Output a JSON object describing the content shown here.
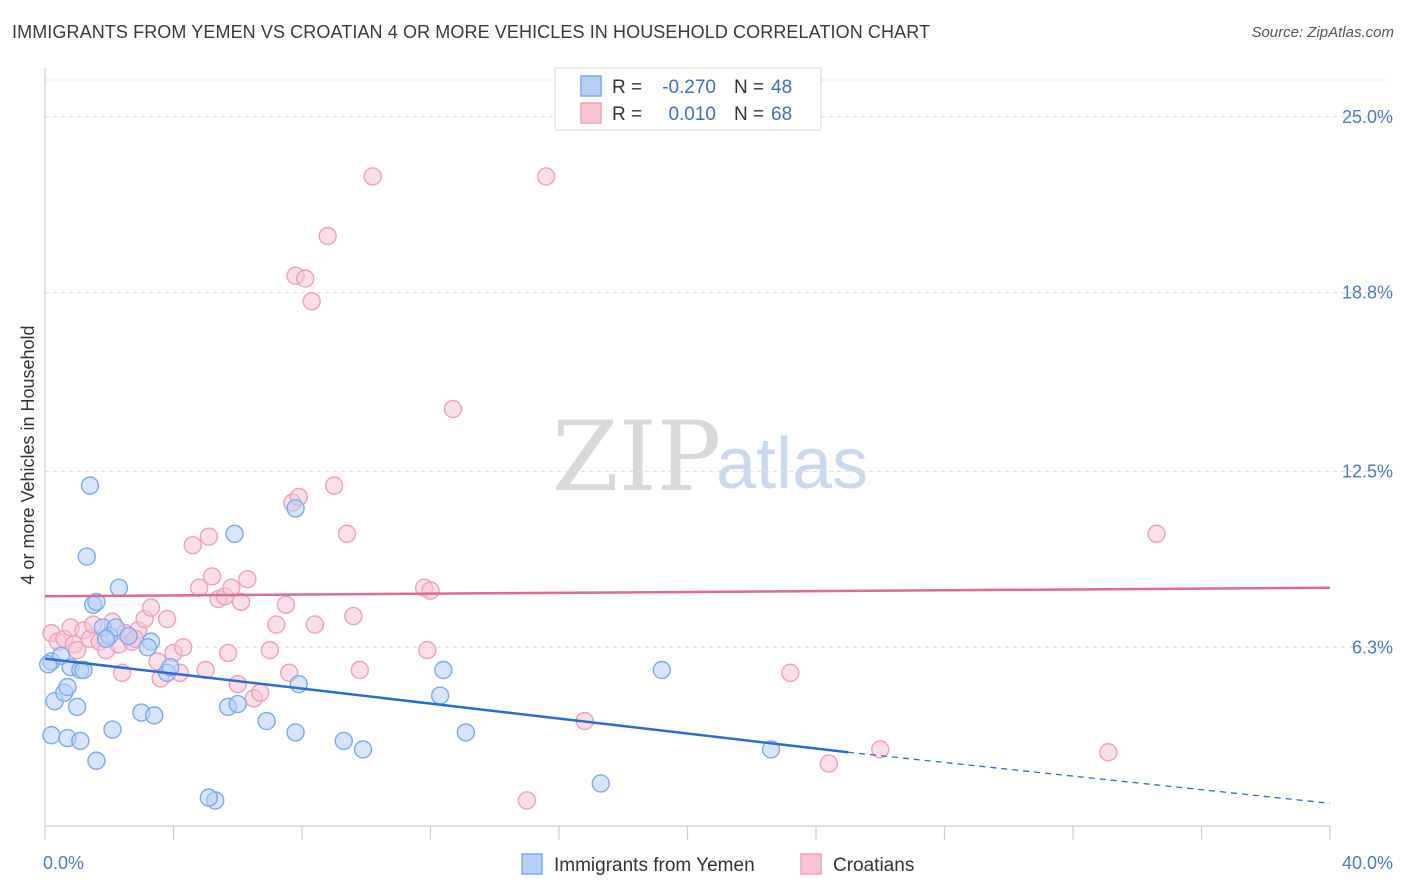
{
  "chart_data": {
    "type": "scatter",
    "title": "IMMIGRANTS FROM YEMEN VS CROATIAN 4 OR MORE VEHICLES IN HOUSEHOLD CORRELATION CHART",
    "source": "Source: ZipAtlas.com",
    "ylabel": "4 or more Vehicles in Household",
    "xlabel": "",
    "xlim": [
      0,
      40
    ],
    "ylim": [
      0,
      26.3
    ],
    "x_tick_labels": [
      "0.0%",
      "40.0%"
    ],
    "y_ticks": [
      6.3,
      12.5,
      18.8,
      25.0
    ],
    "y_tick_labels": [
      "6.3%",
      "12.5%",
      "18.8%",
      "25.0%"
    ],
    "legend": {
      "r_label": "R =",
      "n_label": "N =",
      "entries": [
        {
          "r": "-0.270",
          "n": "48"
        },
        {
          "r": "0.010",
          "n": "68"
        }
      ]
    },
    "watermark": {
      "zip": "ZIP",
      "atlas": "atlas"
    },
    "series": [
      {
        "name": "Immigrants from Yemen",
        "color": "#7aaaf0",
        "fill": "#b5cff5",
        "line_color": "#2a6dd2",
        "trend": {
          "x0": 0,
          "y0": 5.9,
          "x1": 25,
          "y1": 2.6,
          "dash_to": 40,
          "dash_y": 0.8
        },
        "points": [
          [
            0.2,
            5.8
          ],
          [
            0.5,
            6.0
          ],
          [
            0.3,
            4.4
          ],
          [
            0.6,
            4.7
          ],
          [
            0.7,
            4.9
          ],
          [
            0.8,
            5.6
          ],
          [
            1.1,
            5.5
          ],
          [
            1.0,
            4.2
          ],
          [
            0.2,
            3.2
          ],
          [
            0.7,
            3.1
          ],
          [
            1.1,
            3.0
          ],
          [
            1.6,
            2.3
          ],
          [
            1.4,
            12.0
          ],
          [
            1.3,
            9.5
          ],
          [
            1.5,
            7.8
          ],
          [
            1.6,
            7.9
          ],
          [
            1.8,
            7.0
          ],
          [
            2.0,
            6.7
          ],
          [
            2.2,
            7.0
          ],
          [
            2.3,
            8.4
          ],
          [
            1.9,
            6.6
          ],
          [
            2.6,
            6.7
          ],
          [
            3.3,
            6.5
          ],
          [
            3.2,
            6.3
          ],
          [
            3.0,
            4.0
          ],
          [
            3.4,
            3.9
          ],
          [
            3.8,
            5.4
          ],
          [
            3.9,
            5.6
          ],
          [
            2.1,
            3.4
          ],
          [
            5.3,
            0.9
          ],
          [
            5.1,
            1.0
          ],
          [
            5.7,
            4.2
          ],
          [
            6.0,
            4.3
          ],
          [
            5.9,
            10.3
          ],
          [
            6.9,
            3.7
          ],
          [
            7.8,
            11.2
          ],
          [
            7.8,
            3.3
          ],
          [
            7.9,
            5.0
          ],
          [
            9.3,
            3.0
          ],
          [
            9.9,
            2.7
          ],
          [
            12.3,
            4.6
          ],
          [
            12.4,
            5.5
          ],
          [
            13.1,
            3.3
          ],
          [
            17.3,
            1.5
          ],
          [
            19.2,
            5.5
          ],
          [
            22.6,
            2.7
          ],
          [
            1.2,
            5.5
          ],
          [
            0.1,
            5.7
          ]
        ]
      },
      {
        "name": "Croatians",
        "color": "#f0a0b8",
        "fill": "#f8c5d4",
        "line_color": "#e06a91",
        "trend": {
          "x0": 0,
          "y0": 8.1,
          "x1": 40,
          "y1": 8.4
        },
        "points": [
          [
            0.2,
            6.8
          ],
          [
            0.4,
            6.5
          ],
          [
            0.6,
            6.6
          ],
          [
            0.8,
            7.0
          ],
          [
            0.9,
            6.4
          ],
          [
            1.2,
            6.9
          ],
          [
            1.4,
            6.6
          ],
          [
            1.7,
            6.5
          ],
          [
            1.9,
            6.2
          ],
          [
            2.1,
            7.2
          ],
          [
            2.3,
            6.4
          ],
          [
            2.5,
            6.8
          ],
          [
            2.7,
            6.5
          ],
          [
            2.9,
            6.9
          ],
          [
            3.1,
            7.3
          ],
          [
            3.3,
            7.7
          ],
          [
            2.4,
            5.4
          ],
          [
            3.6,
            5.2
          ],
          [
            3.8,
            7.3
          ],
          [
            4.0,
            6.1
          ],
          [
            4.2,
            5.4
          ],
          [
            4.3,
            6.3
          ],
          [
            4.6,
            9.9
          ],
          [
            4.8,
            8.4
          ],
          [
            5.0,
            5.5
          ],
          [
            5.1,
            10.2
          ],
          [
            5.2,
            8.8
          ],
          [
            5.4,
            8.0
          ],
          [
            5.6,
            8.1
          ],
          [
            5.7,
            6.1
          ],
          [
            5.8,
            8.4
          ],
          [
            6.1,
            7.9
          ],
          [
            6.3,
            8.7
          ],
          [
            6.0,
            5.0
          ],
          [
            6.5,
            4.5
          ],
          [
            6.7,
            4.7
          ],
          [
            7.0,
            6.2
          ],
          [
            7.2,
            7.1
          ],
          [
            7.5,
            7.8
          ],
          [
            7.6,
            5.4
          ],
          [
            7.7,
            11.4
          ],
          [
            7.9,
            11.6
          ],
          [
            8.4,
            7.1
          ],
          [
            9.0,
            12.0
          ],
          [
            9.4,
            10.3
          ],
          [
            9.6,
            7.4
          ],
          [
            9.8,
            5.5
          ],
          [
            7.8,
            19.4
          ],
          [
            8.1,
            19.3
          ],
          [
            8.3,
            18.5
          ],
          [
            8.8,
            20.8
          ],
          [
            10.2,
            22.9
          ],
          [
            15.6,
            22.9
          ],
          [
            12.7,
            14.7
          ],
          [
            11.8,
            8.4
          ],
          [
            12.0,
            8.3
          ],
          [
            11.9,
            6.2
          ],
          [
            16.8,
            3.7
          ],
          [
            15.0,
            0.9
          ],
          [
            23.2,
            5.4
          ],
          [
            24.4,
            2.2
          ],
          [
            26.0,
            2.7
          ],
          [
            33.1,
            2.6
          ],
          [
            34.6,
            10.3
          ],
          [
            1.0,
            6.2
          ],
          [
            1.5,
            7.1
          ],
          [
            2.8,
            6.6
          ],
          [
            3.5,
            5.8
          ]
        ]
      }
    ]
  }
}
